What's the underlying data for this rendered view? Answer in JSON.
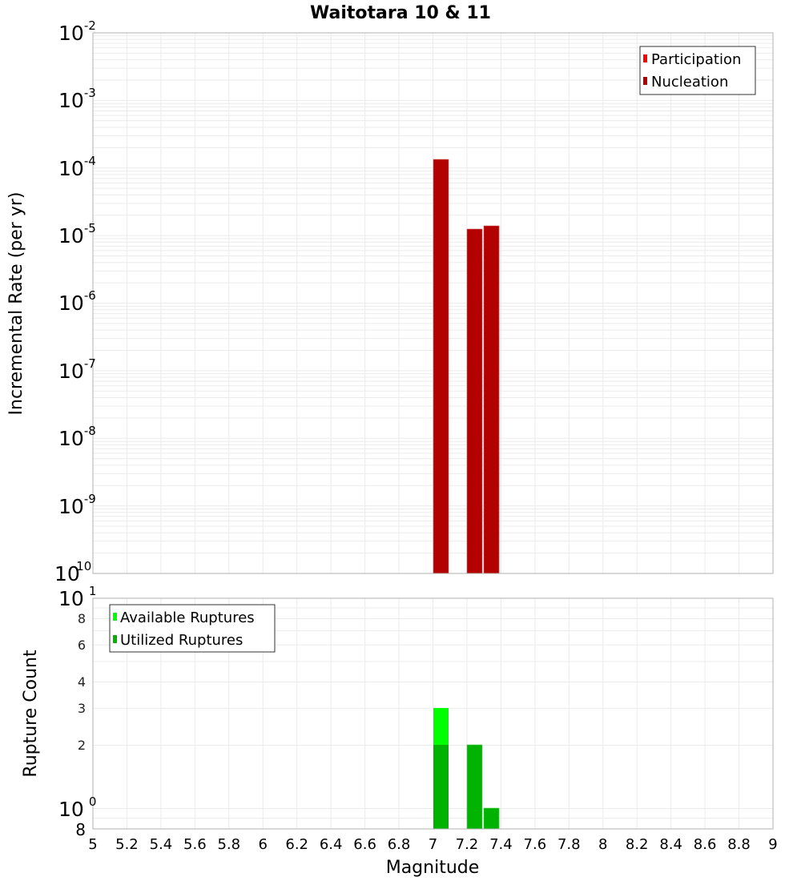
{
  "title": "Waitotara 10 & 11",
  "colors": {
    "participation": "#ff0000",
    "nucleation": "#b30000",
    "available": "#00ff00",
    "utilized": "#00b300"
  },
  "chart_data": [
    {
      "type": "bar",
      "title": "Waitotara 10 & 11",
      "xlabel": "Magnitude",
      "ylabel": "Incremental Rate (per yr)",
      "yscale": "log",
      "xlim": [
        5,
        9
      ],
      "ylim": [
        1e-10,
        0.01
      ],
      "x_ticks": [
        "5",
        "5.2",
        "5.4",
        "5.6",
        "5.8",
        "6",
        "6.2",
        "6.4",
        "6.6",
        "6.8",
        "7",
        "7.2",
        "7.4",
        "7.6",
        "7.8",
        "8",
        "8.2",
        "8.4",
        "8.6",
        "8.8",
        "9"
      ],
      "y_ticks": [
        "10^-2",
        "10^-3",
        "10^-4",
        "10^-5",
        "10^-6",
        "10^-7",
        "10^-8",
        "10^-9",
        "10^-10"
      ],
      "grid": true,
      "legend_position": "top-right",
      "legend": [
        "Participation",
        "Nucleation"
      ],
      "bin_width": 0.1,
      "x": [
        7.05,
        7.25,
        7.35
      ],
      "series": [
        {
          "name": "Participation",
          "values": [
            0.000135,
            1.25e-05,
            1.38e-05
          ]
        },
        {
          "name": "Nucleation",
          "values": [
            0.000135,
            1.25e-05,
            1.38e-05
          ]
        }
      ]
    },
    {
      "type": "bar",
      "xlabel": "Magnitude",
      "ylabel": "Rupture Count",
      "yscale": "log",
      "xlim": [
        5,
        9
      ],
      "ylim": [
        0.8,
        10
      ],
      "x_ticks": [
        "5",
        "5.2",
        "5.4",
        "5.6",
        "5.8",
        "6",
        "6.2",
        "6.4",
        "6.6",
        "6.8",
        "7",
        "7.2",
        "7.4",
        "7.6",
        "7.8",
        "8",
        "8.2",
        "8.4",
        "8.6",
        "8.8",
        "9"
      ],
      "y_ticks": [
        "8",
        "10^0",
        "2",
        "3",
        "4",
        "6",
        "8",
        "10^1"
      ],
      "grid": true,
      "legend_position": "top-left",
      "legend": [
        "Available Ruptures",
        "Utilized Ruptures"
      ],
      "bin_width": 0.1,
      "x": [
        7.05,
        7.25,
        7.35
      ],
      "series": [
        {
          "name": "Available Ruptures",
          "values": [
            3,
            2,
            1
          ]
        },
        {
          "name": "Utilized Ruptures",
          "values": [
            2,
            2,
            1
          ]
        }
      ]
    }
  ],
  "top_plot": {
    "ylabel": "Incremental Rate (per yr)",
    "legend": {
      "participation": "Participation",
      "nucleation": "Nucleation"
    },
    "y_major": [
      {
        "base": "10",
        "exp": "-2"
      },
      {
        "base": "10",
        "exp": "-3"
      },
      {
        "base": "10",
        "exp": "-4"
      },
      {
        "base": "10",
        "exp": "-5"
      },
      {
        "base": "10",
        "exp": "-6"
      },
      {
        "base": "10",
        "exp": "-7"
      },
      {
        "base": "10",
        "exp": "-8"
      },
      {
        "base": "10",
        "exp": "-9"
      },
      {
        "base": "10",
        "exp": "-10"
      }
    ]
  },
  "bottom_plot": {
    "ylabel": "Rupture Count",
    "legend": {
      "available": "Available Ruptures",
      "utilized": "Utilized Ruptures"
    },
    "y_top": {
      "base": "10",
      "exp": "1"
    },
    "y_mid": {
      "base": "10",
      "exp": "0"
    },
    "y_minor": [
      "8",
      "6",
      "4",
      "3",
      "2"
    ],
    "y_bottom": "8"
  },
  "x_axis": {
    "label": "Magnitude",
    "ticks": [
      "5",
      "5.2",
      "5.4",
      "5.6",
      "5.8",
      "6",
      "6.2",
      "6.4",
      "6.6",
      "6.8",
      "7",
      "7.2",
      "7.4",
      "7.6",
      "7.8",
      "8",
      "8.2",
      "8.4",
      "8.6",
      "8.8",
      "9"
    ]
  }
}
